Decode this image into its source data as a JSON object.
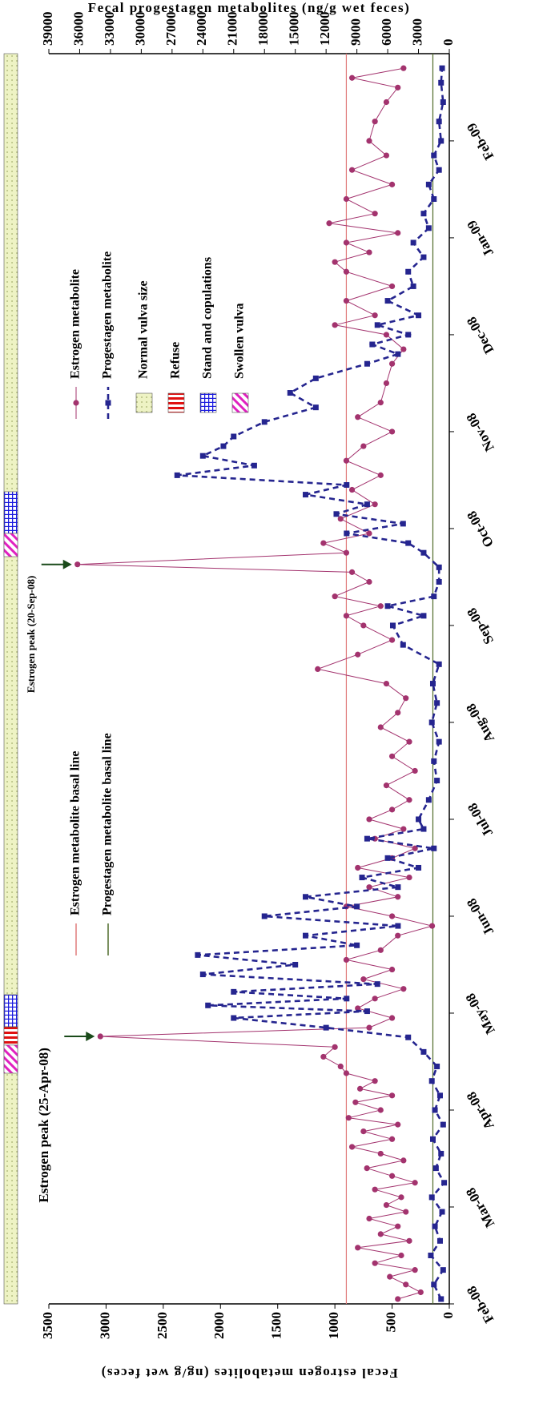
{
  "chart_data": {
    "type": "line",
    "ylabel": "Fecal estrogen metabolites (ng/g wet feces)",
    "y2label": "Fecal progestagen metabolites (ng/g wet feces)",
    "xlim": [
      0,
      12.9
    ],
    "xticks": [
      {
        "value": 0,
        "label": "Feb-08"
      },
      {
        "value": 1,
        "label": "Mar-08"
      },
      {
        "value": 2,
        "label": "Apr-08"
      },
      {
        "value": 3,
        "label": "May-08"
      },
      {
        "value": 4,
        "label": "Jun-08"
      },
      {
        "value": 5,
        "label": "Jul-08"
      },
      {
        "value": 6,
        "label": "Aug-08"
      },
      {
        "value": 7,
        "label": "Sep-08"
      },
      {
        "value": 8,
        "label": "Oct-08"
      },
      {
        "value": 9,
        "label": "Nov-08"
      },
      {
        "value": 10,
        "label": "Dec-08"
      },
      {
        "value": 11,
        "label": "Jan-09"
      },
      {
        "value": 12,
        "label": "Feb-09"
      }
    ],
    "ylim": [
      0,
      3500
    ],
    "yticks": [
      0,
      500,
      1000,
      1500,
      2000,
      2500,
      3000,
      3500
    ],
    "y2lim": [
      0,
      39000
    ],
    "y2ticks": [
      0,
      3000,
      6000,
      9000,
      12000,
      15000,
      18000,
      21000,
      24000,
      27000,
      30000,
      33000,
      36000,
      39000
    ],
    "series": [
      {
        "name": "Estrogen metabolite",
        "color": "#a3336e",
        "marker": "circle",
        "x": [
          0.05,
          0.12,
          0.2,
          0.28,
          0.35,
          0.42,
          0.5,
          0.58,
          0.65,
          0.72,
          0.8,
          0.88,
          0.95,
          1.02,
          1.1,
          1.18,
          1.25,
          1.32,
          1.4,
          1.48,
          1.55,
          1.62,
          1.7,
          1.78,
          1.85,
          1.92,
          2.0,
          2.08,
          2.15,
          2.22,
          2.3,
          2.38,
          2.45,
          2.55,
          2.65,
          2.76,
          2.85,
          2.95,
          3.05,
          3.15,
          3.25,
          3.35,
          3.45,
          3.55,
          3.65,
          3.8,
          3.9,
          4.0,
          4.1,
          4.2,
          4.3,
          4.4,
          4.5,
          4.6,
          4.7,
          4.8,
          4.9,
          5.0,
          5.1,
          5.2,
          5.35,
          5.5,
          5.65,
          5.8,
          5.95,
          6.1,
          6.25,
          6.4,
          6.55,
          6.7,
          6.85,
          7.0,
          7.1,
          7.2,
          7.3,
          7.45,
          7.55,
          7.63,
          7.75,
          7.85,
          7.95,
          8.1,
          8.25,
          8.4,
          8.55,
          8.7,
          8.85,
          9.0,
          9.15,
          9.3,
          9.5,
          9.7,
          9.85,
          10.0,
          10.1,
          10.2,
          10.35,
          10.5,
          10.65,
          10.75,
          10.85,
          10.95,
          11.05,
          11.15,
          11.25,
          11.4,
          11.55,
          11.7,
          11.85,
          12.0,
          12.2,
          12.4,
          12.55,
          12.65,
          12.75
        ],
        "values": [
          450,
          250,
          380,
          520,
          300,
          650,
          420,
          800,
          350,
          600,
          450,
          700,
          380,
          550,
          420,
          650,
          300,
          500,
          720,
          400,
          600,
          850,
          500,
          750,
          450,
          880,
          600,
          820,
          500,
          780,
          650,
          900,
          950,
          1100,
          1000,
          3050,
          700,
          500,
          800,
          650,
          400,
          750,
          500,
          900,
          600,
          450,
          150,
          500,
          900,
          450,
          700,
          350,
          800,
          500,
          300,
          650,
          400,
          700,
          500,
          350,
          550,
          300,
          500,
          350,
          600,
          450,
          380,
          550,
          1150,
          800,
          500,
          750,
          900,
          600,
          1000,
          700,
          850,
          3250,
          900,
          1100,
          700,
          950,
          650,
          850,
          600,
          900,
          750,
          500,
          800,
          600,
          550,
          500,
          400,
          550,
          1000,
          650,
          900,
          500,
          900,
          1000,
          700,
          900,
          450,
          1050,
          650,
          900,
          500,
          850,
          550,
          700,
          650,
          550,
          450,
          850,
          400
        ]
      },
      {
        "name": "Progestagen metabolite",
        "color": "#25258f",
        "marker": "square",
        "dashed": true,
        "axis": "y2",
        "x": [
          0.05,
          0.2,
          0.35,
          0.5,
          0.65,
          0.8,
          0.95,
          1.1,
          1.25,
          1.4,
          1.55,
          1.7,
          1.85,
          2.0,
          2.15,
          2.3,
          2.45,
          2.6,
          2.75,
          2.85,
          2.95,
          3.02,
          3.08,
          3.15,
          3.22,
          3.3,
          3.4,
          3.5,
          3.6,
          3.7,
          3.8,
          3.9,
          4.0,
          4.1,
          4.2,
          4.3,
          4.4,
          4.5,
          4.6,
          4.7,
          4.8,
          4.9,
          5.0,
          5.2,
          5.4,
          5.6,
          5.8,
          6.0,
          6.2,
          6.4,
          6.6,
          6.8,
          7.0,
          7.1,
          7.2,
          7.3,
          7.45,
          7.6,
          7.75,
          7.85,
          7.95,
          8.05,
          8.15,
          8.25,
          8.35,
          8.45,
          8.55,
          8.65,
          8.75,
          8.85,
          8.95,
          9.1,
          9.25,
          9.4,
          9.55,
          9.7,
          9.8,
          9.9,
          10.0,
          10.1,
          10.2,
          10.35,
          10.5,
          10.65,
          10.8,
          10.95,
          11.1,
          11.25,
          11.4,
          11.55,
          11.7,
          11.85,
          12.0,
          12.2,
          12.4,
          12.6,
          12.75
        ],
        "values": [
          800,
          1500,
          600,
          1800,
          900,
          1400,
          700,
          1700,
          500,
          1300,
          800,
          1600,
          600,
          1400,
          900,
          1700,
          1200,
          2500,
          4000,
          12000,
          21000,
          8000,
          23500,
          10000,
          21000,
          7000,
          24000,
          15000,
          24500,
          9000,
          14000,
          5000,
          18000,
          9000,
          14000,
          5000,
          8500,
          3000,
          6000,
          1500,
          8000,
          2500,
          3000,
          2000,
          1200,
          1500,
          1000,
          1700,
          1200,
          1600,
          1000,
          4500,
          5500,
          2500,
          6000,
          1500,
          1000,
          1000,
          2500,
          4000,
          10000,
          4500,
          11000,
          8000,
          14000,
          10000,
          26500,
          19000,
          24000,
          22000,
          21000,
          18000,
          13000,
          15500,
          13000,
          8000,
          5000,
          7500,
          4000,
          7000,
          3000,
          6000,
          3500,
          4000,
          2500,
          3500,
          2000,
          2500,
          1500,
          2000,
          1000,
          1500,
          800,
          1000,
          600,
          800,
          700
        ]
      }
    ],
    "reference_lines": [
      {
        "name": "Estrogen metabolite basal line",
        "value": 900,
        "color": "#e07a7a"
      },
      {
        "name": "Progestagen metabolite basal line",
        "value": 1600,
        "axis": "y2",
        "color": "#4f6b2a"
      }
    ],
    "status_bar": [
      {
        "name": "Normal vulva size",
        "color": "#eef3c4",
        "spans": [
          [
            0,
            12.9
          ]
        ]
      },
      {
        "name": "Refuse",
        "color": "#e01010",
        "spans": [
          [
            2.67,
            2.86
          ]
        ]
      },
      {
        "name": "Stand and copulations",
        "color": "#1a1ae0",
        "spans": [
          [
            2.86,
            3.19
          ],
          [
            7.95,
            8.38
          ]
        ]
      },
      {
        "name": "Swollen vulva",
        "color": "#e020c0",
        "spans": [
          [
            2.38,
            2.67
          ],
          [
            7.71,
            7.95
          ]
        ]
      }
    ],
    "annotations": [
      {
        "text": "Estrogen peak (25-Apr-08)",
        "x": 2.76,
        "y": 3050
      },
      {
        "text": "Estrogen peak (20-Sep-08)",
        "x": 7.63,
        "y": 3250
      }
    ]
  }
}
